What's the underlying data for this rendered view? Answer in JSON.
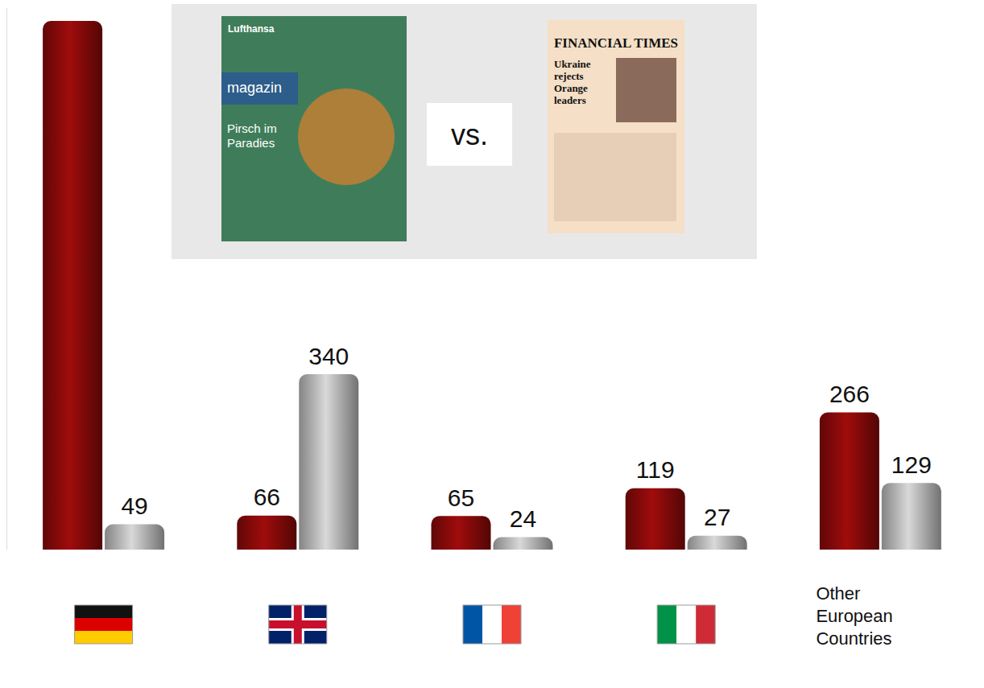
{
  "chart_data": {
    "type": "bar",
    "categories": [
      null,
      null,
      null,
      null,
      "Other European Countries"
    ],
    "series": [
      {
        "color": "#8b0a0a",
        "values": [
          1025,
          66,
          65,
          119,
          266
        ],
        "value_labels": [
          null,
          "66",
          "65",
          "119",
          "266"
        ]
      },
      {
        "color": "#bdbdbd",
        "values": [
          49,
          340,
          24,
          27,
          129
        ],
        "value_labels": [
          "49",
          "340",
          "24",
          "27",
          "129"
        ]
      }
    ],
    "ylim": [
      0,
      1050
    ],
    "data_labels": true,
    "tick_labels": "x",
    "grid": false,
    "annotations": [
      "Lufthansa",
      "magazin",
      "Pirsch im Paradies",
      "vs.",
      "FINANCIAL TIMES",
      "Ukraine rejects Orange leaders"
    ]
  }
}
